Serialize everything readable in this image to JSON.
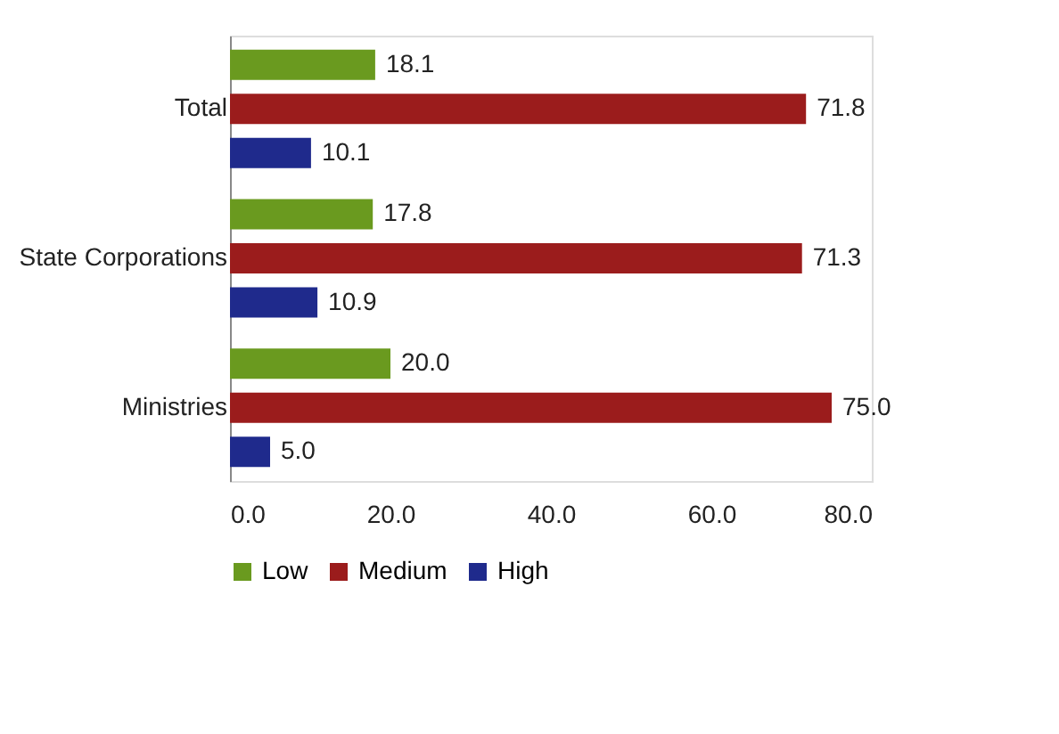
{
  "chart_data": {
    "type": "bar",
    "orientation": "horizontal",
    "categories": [
      "Total",
      "State Corporations",
      "Ministries"
    ],
    "series": [
      {
        "name": "Low",
        "color": "#6a9a1f",
        "values": [
          18.1,
          17.8,
          20.0
        ],
        "value_labels": [
          "18.1",
          "17.8",
          "20.0"
        ]
      },
      {
        "name": "Medium",
        "color": "#9b1c1c",
        "values": [
          71.8,
          71.3,
          75.0
        ],
        "value_labels": [
          "71.8",
          "71.3",
          "75.0"
        ]
      },
      {
        "name": "High",
        "color": "#1f2a8c",
        "values": [
          10.1,
          10.9,
          5.0
        ],
        "value_labels": [
          "10.1",
          "10.9",
          "5.0"
        ]
      }
    ],
    "xlim": [
      0,
      80
    ],
    "xticks": [
      {
        "value": 0,
        "label": "0.0"
      },
      {
        "value": 20,
        "label": "20.0"
      },
      {
        "value": 40,
        "label": "40.0"
      },
      {
        "value": 60,
        "label": "60.0"
      },
      {
        "value": 80,
        "label": "80.0"
      }
    ],
    "grid": false,
    "legend": "bottom"
  }
}
